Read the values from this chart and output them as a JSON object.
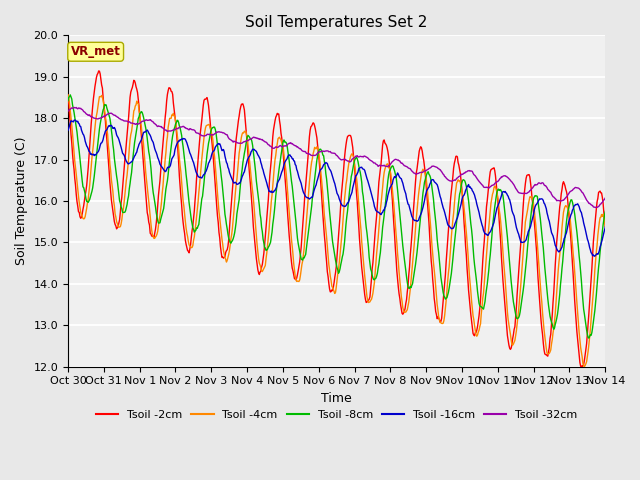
{
  "title": "Soil Temperatures Set 2",
  "xlabel": "Time",
  "ylabel": "Soil Temperature (C)",
  "ylim": [
    12.0,
    20.0
  ],
  "yticks": [
    12.0,
    13.0,
    14.0,
    15.0,
    16.0,
    17.0,
    18.0,
    19.0,
    20.0
  ],
  "n_days": 15,
  "xtick_labels": [
    "Oct 30",
    "Oct 31",
    "Nov 1",
    "Nov 2",
    "Nov 3",
    "Nov 4",
    "Nov 5",
    "Nov 6",
    "Nov 7",
    "Nov 8",
    "Nov 9",
    "Nov 10",
    "Nov 11",
    "Nov 12",
    "Nov 13",
    "Nov 14"
  ],
  "series_colors": [
    "#ff0000",
    "#ff8800",
    "#00bb00",
    "#0000cc",
    "#9900aa"
  ],
  "series_labels": [
    "Tsoil -2cm",
    "Tsoil -4cm",
    "Tsoil -8cm",
    "Tsoil -16cm",
    "Tsoil -32cm"
  ],
  "annotation_text": "VR_met",
  "annotation_color": "#8b0000",
  "annotation_bg": "#ffff99",
  "annotation_edge": "#aaaa00",
  "fig_facecolor": "#e8e8e8",
  "ax_facecolor": "#f0f0f0",
  "grid_color": "#ffffff",
  "title_fontsize": 11,
  "label_fontsize": 9,
  "tick_fontsize": 8
}
